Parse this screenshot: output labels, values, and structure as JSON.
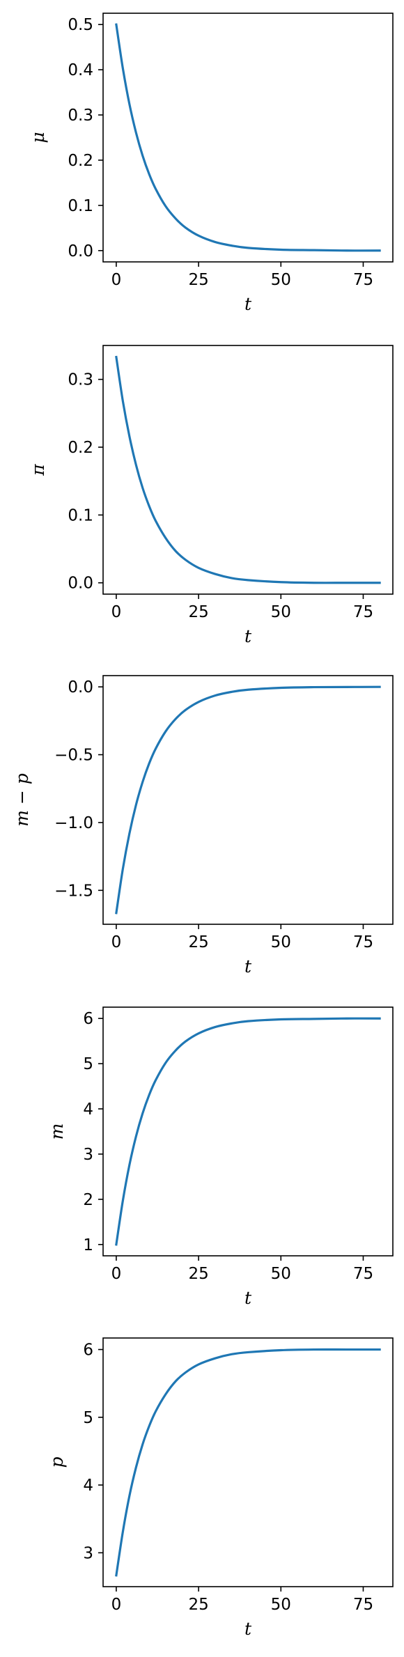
{
  "chart_data": [
    {
      "type": "line",
      "xlabel": "t",
      "ylabel": "μ",
      "xlim": [
        -4,
        84
      ],
      "ylim": [
        -0.025,
        0.525
      ],
      "xticks": [
        0,
        25,
        50,
        75
      ],
      "yticks": [
        0.0,
        0.1,
        0.2,
        0.3,
        0.4,
        0.5
      ],
      "ytick_labels": [
        "0.0",
        "0.1",
        "0.2",
        "0.3",
        "0.4",
        "0.5"
      ],
      "series": [
        {
          "color": "#1f77b4",
          "x": [
            0,
            2,
            4,
            6,
            8,
            10,
            12,
            15,
            18,
            21,
            25,
            30,
            35,
            40,
            50,
            60,
            70,
            80
          ],
          "y": [
            0.5,
            0.403,
            0.324,
            0.261,
            0.21,
            0.169,
            0.136,
            0.098,
            0.071,
            0.051,
            0.033,
            0.019,
            0.011,
            0.006,
            0.002,
            0.001,
            0.0,
            0.0
          ]
        }
      ]
    },
    {
      "type": "line",
      "xlabel": "t",
      "ylabel": "π",
      "xlim": [
        -4,
        84
      ],
      "ylim": [
        -0.0167,
        0.35
      ],
      "xticks": [
        0,
        25,
        50,
        75
      ],
      "yticks": [
        0.0,
        0.1,
        0.2,
        0.3
      ],
      "ytick_labels": [
        "0.0",
        "0.1",
        "0.2",
        "0.3"
      ],
      "series": [
        {
          "color": "#1f77b4",
          "x": [
            0,
            2,
            4,
            6,
            8,
            10,
            12,
            15,
            18,
            21,
            25,
            30,
            35,
            40,
            50,
            60,
            70,
            80
          ],
          "y": [
            0.333,
            0.268,
            0.216,
            0.174,
            0.14,
            0.113,
            0.091,
            0.066,
            0.047,
            0.034,
            0.022,
            0.013,
            0.007,
            0.004,
            0.001,
            0.0,
            0.0,
            0.0
          ]
        }
      ]
    },
    {
      "type": "line",
      "xlabel": "t",
      "ylabel": "m − p",
      "xlim": [
        -4,
        84
      ],
      "ylim": [
        -1.75,
        0.083
      ],
      "xticks": [
        0,
        25,
        50,
        75
      ],
      "yticks": [
        -1.5,
        -1.0,
        -0.5,
        0.0
      ],
      "ytick_labels": [
        "−1.5",
        "−1.0",
        "−0.5",
        "0.0"
      ],
      "series": [
        {
          "color": "#1f77b4",
          "x": [
            0,
            2,
            4,
            6,
            8,
            10,
            12,
            15,
            18,
            21,
            25,
            30,
            35,
            40,
            50,
            60,
            70,
            80
          ],
          "y": [
            -1.667,
            -1.342,
            -1.081,
            -0.87,
            -0.701,
            -0.564,
            -0.454,
            -0.328,
            -0.237,
            -0.171,
            -0.111,
            -0.064,
            -0.037,
            -0.021,
            -0.007,
            -0.002,
            -0.001,
            0.0
          ]
        }
      ]
    },
    {
      "type": "line",
      "xlabel": "t",
      "ylabel": "m",
      "xlim": [
        -4,
        84
      ],
      "ylim": [
        0.75,
        6.25
      ],
      "xticks": [
        0,
        25,
        50,
        75
      ],
      "yticks": [
        1,
        2,
        3,
        4,
        5,
        6
      ],
      "ytick_labels": [
        "1",
        "2",
        "3",
        "4",
        "5",
        "6"
      ],
      "series": [
        {
          "color": "#1f77b4",
          "x": [
            0,
            2,
            4,
            6,
            8,
            10,
            12,
            15,
            18,
            21,
            25,
            30,
            35,
            40,
            50,
            60,
            70,
            80
          ],
          "y": [
            1.0,
            1.97,
            2.76,
            3.39,
            3.9,
            4.31,
            4.64,
            5.02,
            5.29,
            5.49,
            5.67,
            5.81,
            5.89,
            5.94,
            5.98,
            5.99,
            6.0,
            6.0
          ]
        }
      ]
    },
    {
      "type": "line",
      "xlabel": "t",
      "ylabel": "p",
      "xlim": [
        -4,
        84
      ],
      "ylim": [
        2.5,
        6.17
      ],
      "xticks": [
        0,
        25,
        50,
        75
      ],
      "yticks": [
        3,
        4,
        5,
        6
      ],
      "ytick_labels": [
        "3",
        "4",
        "5",
        "6"
      ],
      "series": [
        {
          "color": "#1f77b4",
          "x": [
            0,
            2,
            4,
            6,
            8,
            10,
            12,
            15,
            18,
            21,
            25,
            30,
            35,
            40,
            50,
            60,
            70,
            80
          ],
          "y": [
            2.667,
            3.31,
            3.84,
            4.26,
            4.6,
            4.87,
            5.09,
            5.34,
            5.53,
            5.66,
            5.78,
            5.87,
            5.93,
            5.96,
            5.99,
            6.0,
            6.0,
            6.0
          ]
        }
      ]
    }
  ]
}
